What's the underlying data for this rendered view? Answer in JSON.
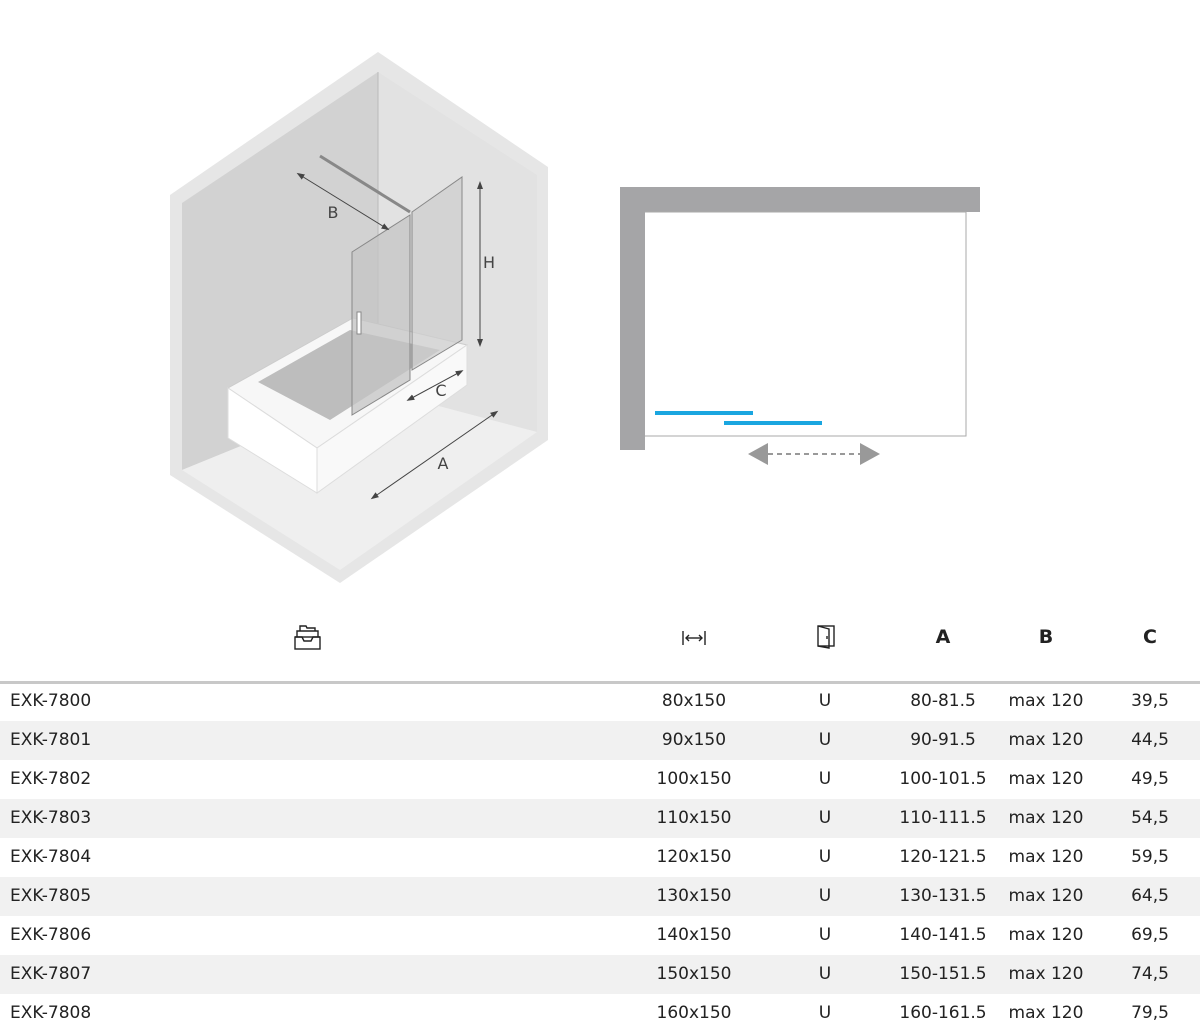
{
  "diagram": {
    "labels": {
      "a": "A",
      "b": "B",
      "c": "C",
      "h": "H"
    },
    "accent_color": "#1aa6e0"
  },
  "table": {
    "header_icons": [
      "drawer-stack-icon",
      "width-arrow-icon",
      "door-icon"
    ],
    "headers": {
      "a": "A",
      "b": "B",
      "c": "C"
    },
    "rows": [
      {
        "code": "EXK-7800",
        "size": "80x150",
        "door": "U",
        "a": "80-81.5",
        "b": "max 120",
        "c": "39,5"
      },
      {
        "code": "EXK-7801",
        "size": "90x150",
        "door": "U",
        "a": "90-91.5",
        "b": "max 120",
        "c": "44,5"
      },
      {
        "code": "EXK-7802",
        "size": "100x150",
        "door": "U",
        "a": "100-101.5",
        "b": "max 120",
        "c": "49,5"
      },
      {
        "code": "EXK-7803",
        "size": "110x150",
        "door": "U",
        "a": "110-111.5",
        "b": "max 120",
        "c": "54,5"
      },
      {
        "code": "EXK-7804",
        "size": "120x150",
        "door": "U",
        "a": "120-121.5",
        "b": "max 120",
        "c": "59,5"
      },
      {
        "code": "EXK-7805",
        "size": "130x150",
        "door": "U",
        "a": "130-131.5",
        "b": "max 120",
        "c": "64,5"
      },
      {
        "code": "EXK-7806",
        "size": "140x150",
        "door": "U",
        "a": "140-141.5",
        "b": "max 120",
        "c": "69,5"
      },
      {
        "code": "EXK-7807",
        "size": "150x150",
        "door": "U",
        "a": "150-151.5",
        "b": "max 120",
        "c": "74,5"
      },
      {
        "code": "EXK-7808",
        "size": "160x150",
        "door": "U",
        "a": "160-161.5",
        "b": "max 120",
        "c": "79,5"
      }
    ]
  }
}
